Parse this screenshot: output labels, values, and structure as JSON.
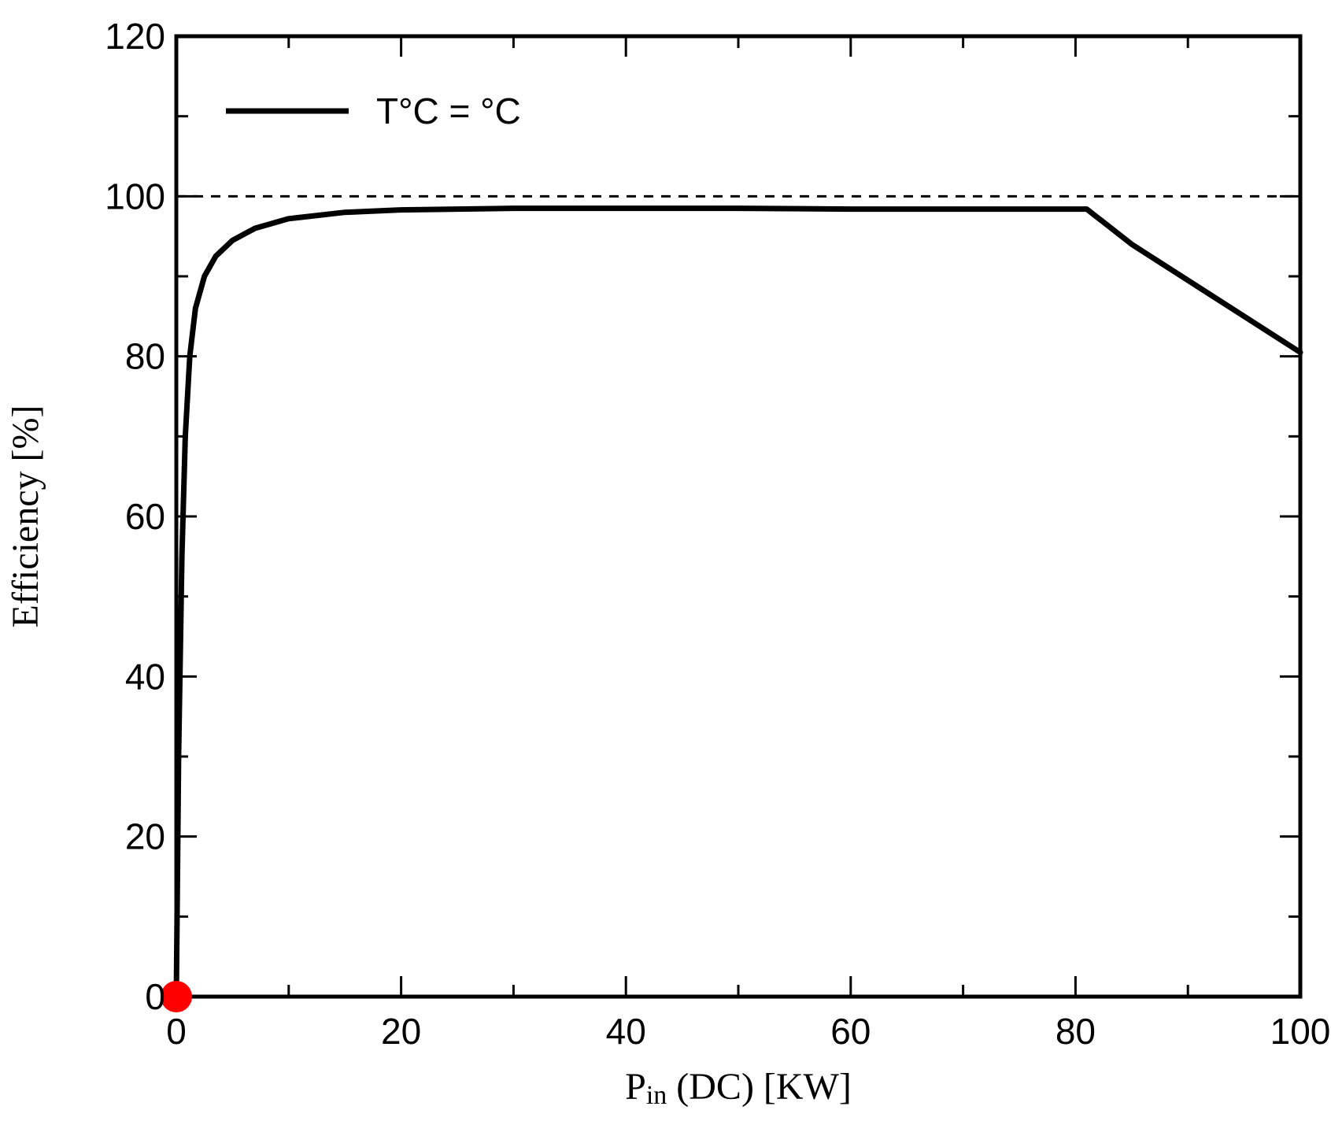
{
  "chart_data": {
    "type": "line",
    "title": "",
    "xlabel": {
      "main": "P",
      "sub": "in",
      "rest": " (DC) [KW]"
    },
    "ylabel": "Efficiency [%]",
    "xlim": [
      0,
      100
    ],
    "ylim": [
      0,
      120
    ],
    "x_ticks": [
      0,
      20,
      40,
      60,
      80,
      100
    ],
    "y_ticks": [
      0,
      20,
      40,
      60,
      80,
      100,
      120
    ],
    "x_minor_step": 10,
    "y_minor_step": 10,
    "grid": false,
    "legend_position": "top-left",
    "reference_line": {
      "y": 100,
      "style": "dashed"
    },
    "marker_point": {
      "x": 0,
      "y": 0,
      "color": "#ff0000"
    },
    "series": [
      {
        "name": "T°C = °C",
        "color": "#000000",
        "x": [
          0,
          0.2,
          0.5,
          0.8,
          1.2,
          1.7,
          2.5,
          3.5,
          5,
          7,
          10,
          15,
          20,
          30,
          40,
          50,
          60,
          70,
          80,
          81,
          85,
          90,
          95,
          100
        ],
        "y": [
          0,
          30,
          55,
          70,
          80,
          86,
          90,
          92.5,
          94.5,
          96,
          97.2,
          98,
          98.3,
          98.5,
          98.5,
          98.5,
          98.4,
          98.4,
          98.4,
          98.4,
          94,
          89.5,
          85,
          80.5
        ]
      }
    ]
  }
}
